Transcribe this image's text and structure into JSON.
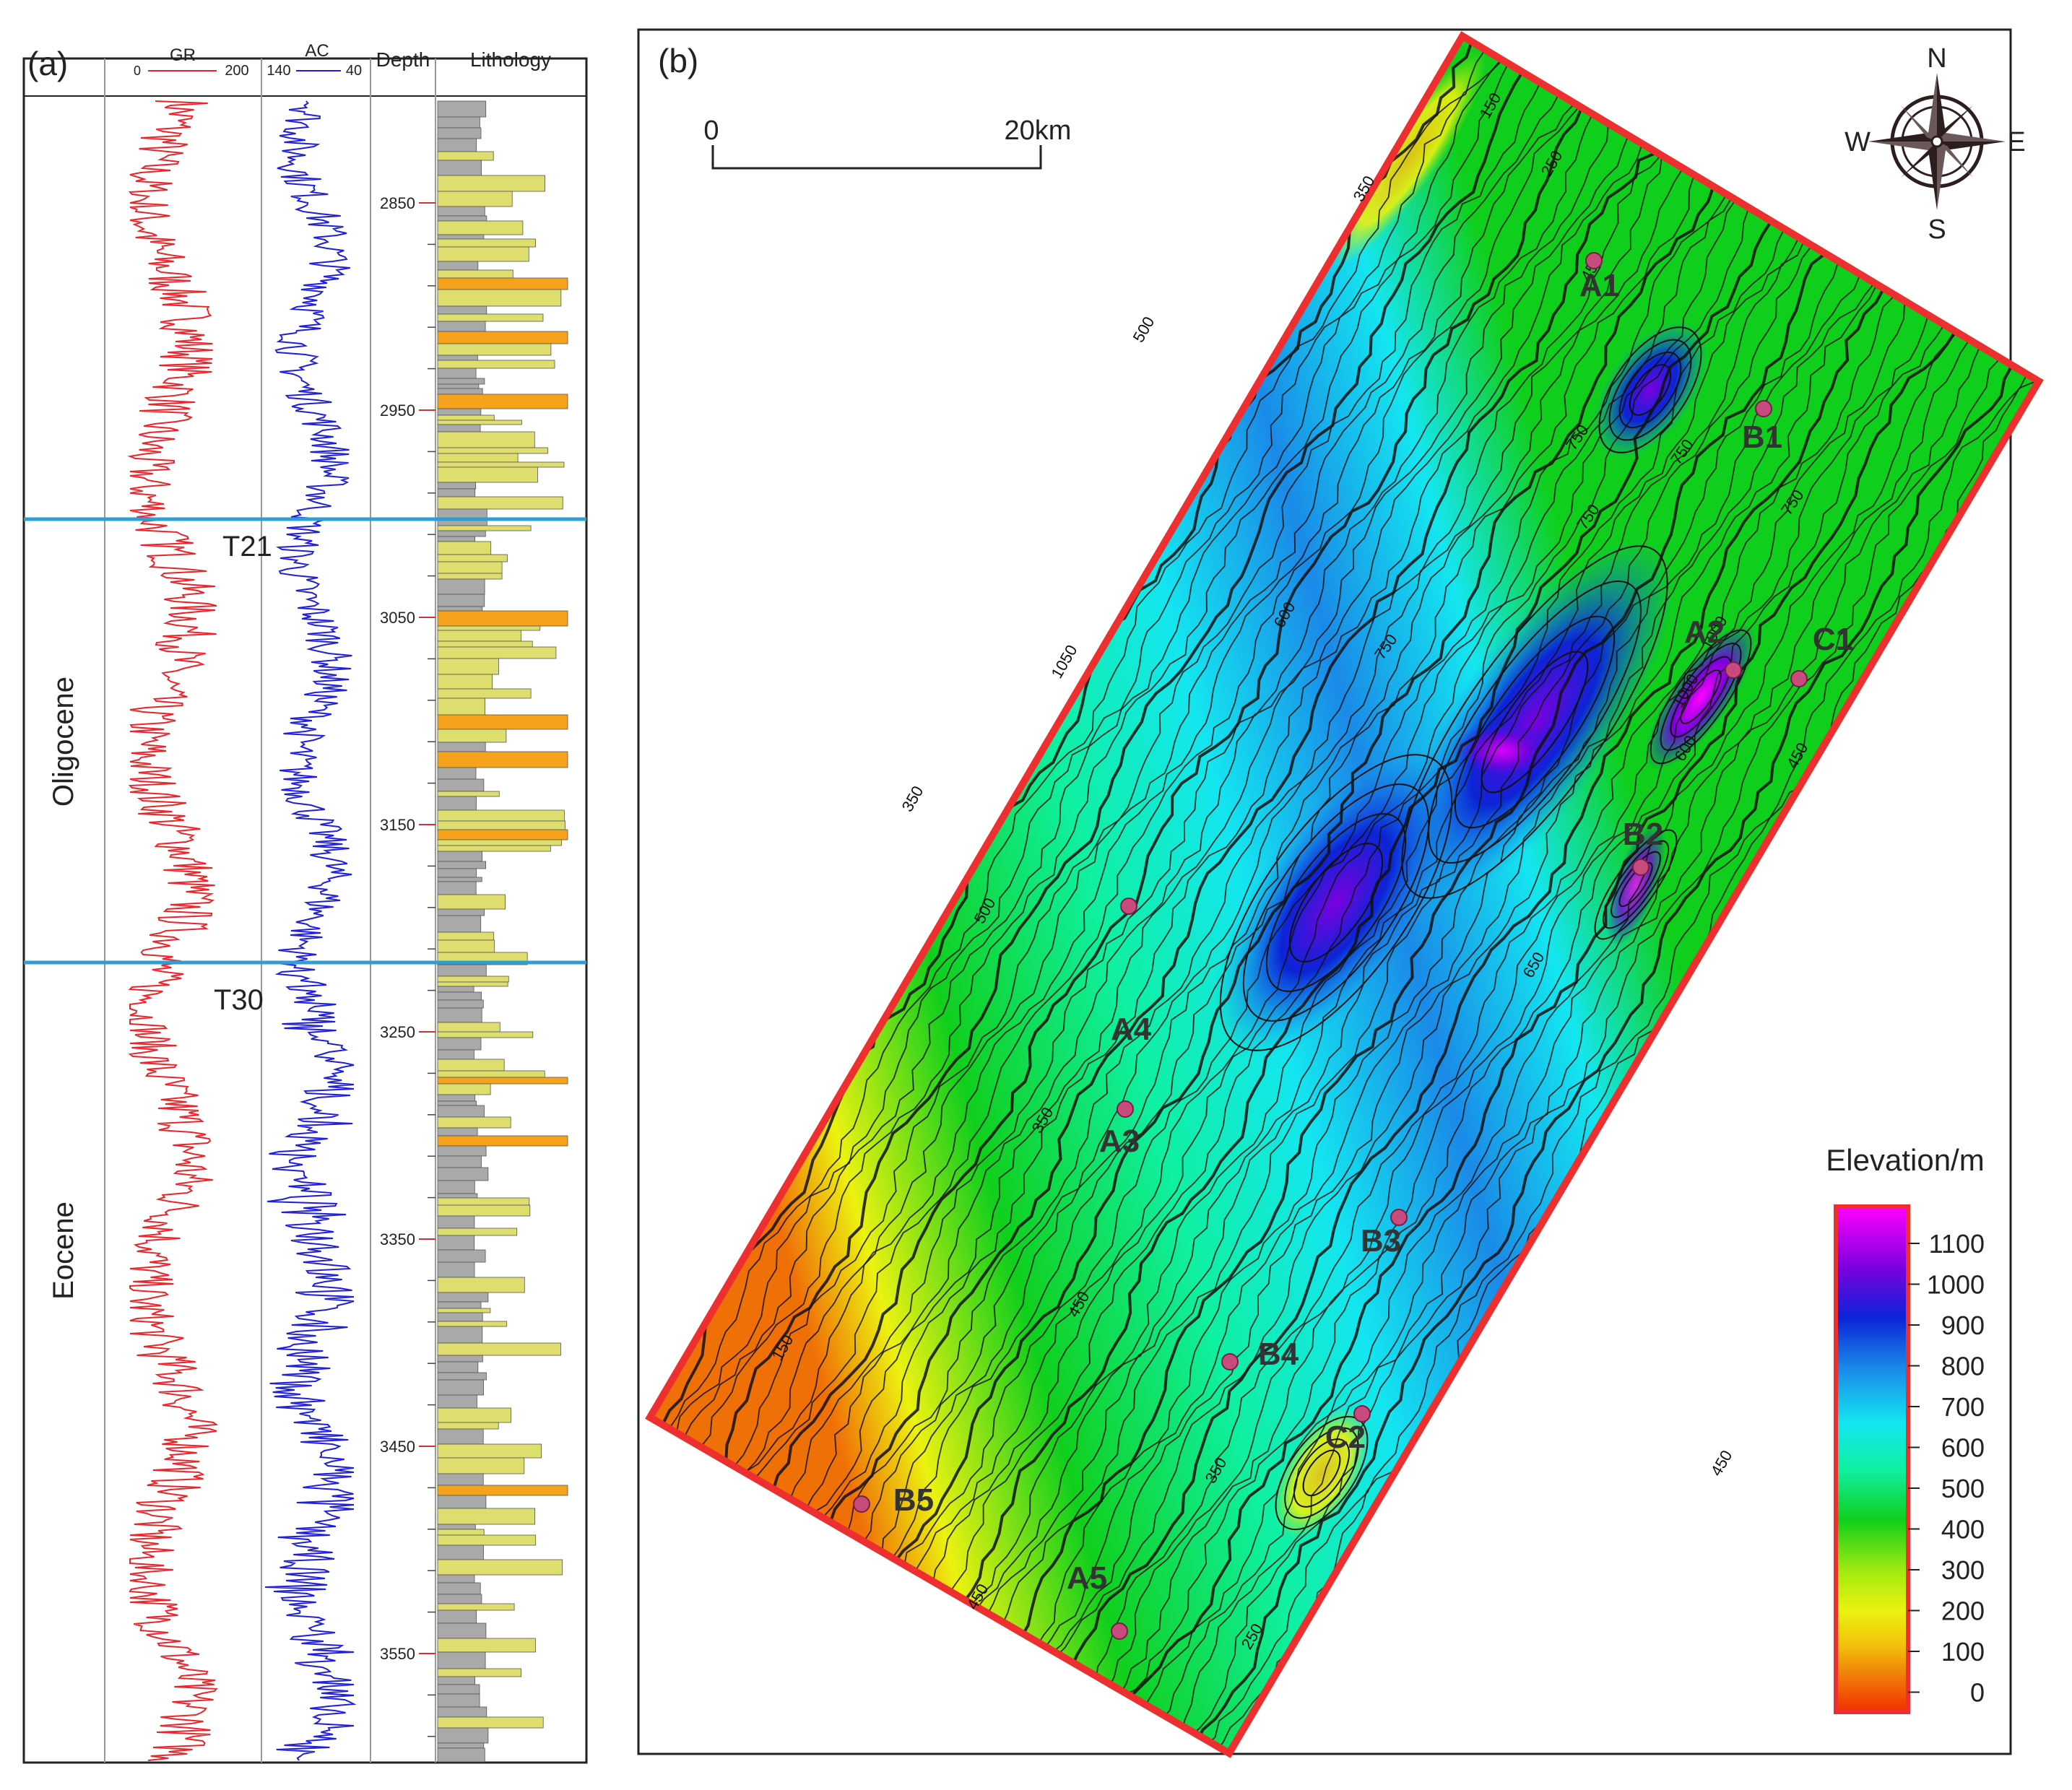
{
  "panel_a": {
    "label": "(a)",
    "headers": {
      "gr": {
        "name": "GR",
        "min": "0",
        "max": "200"
      },
      "ac": {
        "name": "AC",
        "min": "140",
        "max": "40"
      },
      "depth": "Depth",
      "lithology": "Lithology"
    },
    "depth_ticks": [
      "2850",
      "2950",
      "3050",
      "3150",
      "3250",
      "3350",
      "3450",
      "3550"
    ],
    "formations": [
      "Oligocene",
      "Eocene"
    ],
    "horizons": [
      "T21",
      "T30"
    ],
    "colors": {
      "gr_curve": "#e8262a",
      "ac_curve": "#1f1fd6",
      "horizon_line": "#2e9fd6",
      "sandstone": "#dede6e",
      "mudstone": "#a9a9a9",
      "conglomerate": "#f7a21b"
    }
  },
  "panel_b": {
    "label": "(b)",
    "scale_bar": {
      "start": "0",
      "end": "20km"
    },
    "compass": {
      "n": "N",
      "s": "S",
      "e": "E",
      "w": "W"
    },
    "wells": [
      {
        "name": "A1"
      },
      {
        "name": "B1"
      },
      {
        "name": "A2"
      },
      {
        "name": "C1"
      },
      {
        "name": "B2"
      },
      {
        "name": "A4"
      },
      {
        "name": "A3"
      },
      {
        "name": "B3"
      },
      {
        "name": "B4"
      },
      {
        "name": "C2"
      },
      {
        "name": "B5"
      },
      {
        "name": "A5"
      }
    ],
    "contour_labels": [
      "150",
      "250",
      "350",
      "450",
      "500",
      "600",
      "750",
      "750",
      "750",
      "750",
      "750",
      "600",
      "500",
      "350",
      "450",
      "150",
      "350",
      "250",
      "450",
      "350",
      "1000",
      "650",
      "450",
      "450",
      "1000",
      "1050"
    ],
    "legend": {
      "title": "Elevation/m",
      "ticks": [
        "1100",
        "1000",
        "900",
        "800",
        "700",
        "600",
        "500",
        "400",
        "300",
        "200",
        "100",
        "0"
      ],
      "colors": [
        "#ff00ff",
        "#7b00e0",
        "#0b24d6",
        "#1a8ae8",
        "#14e6f0",
        "#0ff0a0",
        "#10cf1c",
        "#a0ea0f",
        "#ecf210",
        "#f2c00c",
        "#f07008",
        "#f03000"
      ]
    },
    "frame_color": "#ee2f2f"
  }
}
